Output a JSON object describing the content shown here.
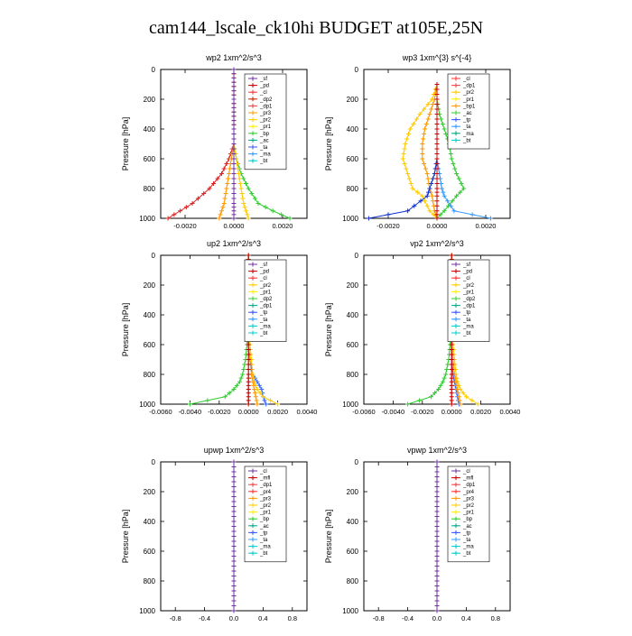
{
  "figure_title": "cam144_lscale_ck10hi  BUDGET at105E,25N",
  "chart_data": [
    {
      "type": "line",
      "title": "wp2  1xm^2/s^3",
      "ylabel": "Pressure [hPa]",
      "ylim": [
        0,
        1000
      ],
      "xlim": [
        -0.003,
        0.003
      ],
      "xticks": [
        -0.002,
        0,
        0.002
      ],
      "xtick_labels": [
        "-0.0020",
        "0.0000",
        "0.0020"
      ],
      "yticks": [
        0,
        200,
        400,
        600,
        800,
        1000
      ],
      "legend": [
        "_sf",
        "_pd",
        "_cl",
        "_dp2",
        "_dp1",
        "_pr3",
        "_pr2",
        "_pr1",
        "_bp",
        "_ac",
        "_ta",
        "_ma",
        "_bt"
      ],
      "legend_colors": [
        "#7030a0",
        "#cc0000",
        "#ff3333",
        "#cc2200",
        "#ee4444",
        "#ff9900",
        "#ffcc00",
        "#ffee00",
        "#33cc33",
        "#00aa88",
        "#3355ff",
        "#3399ff",
        "#00cccc"
      ],
      "series": [
        {
          "name": "_dp1",
          "color": "#dd2222",
          "x": [
            0,
            0,
            0,
            0,
            -0.0002,
            -0.0005,
            -0.001,
            -0.0017,
            -0.0022,
            -0.0027
          ],
          "y": [
            0,
            200,
            400,
            500,
            600,
            700,
            800,
            900,
            950,
            1000
          ]
        },
        {
          "name": "_pr1",
          "color": "#33cc33",
          "x": [
            0,
            0,
            0,
            0,
            0.0001,
            0.0003,
            0.0006,
            0.001,
            0.0016,
            0.0023
          ],
          "y": [
            0,
            200,
            400,
            500,
            600,
            700,
            800,
            900,
            950,
            1000
          ]
        },
        {
          "name": "_pr2",
          "color": "#ffcc00",
          "x": [
            0,
            0,
            0,
            0,
            0.0001,
            0.0002,
            0.0003,
            0.0004,
            0.0005,
            0.0006
          ],
          "y": [
            0,
            200,
            400,
            500,
            600,
            700,
            800,
            900,
            950,
            1000
          ]
        },
        {
          "name": "_pr3",
          "color": "#ff9900",
          "x": [
            0,
            0,
            0,
            0,
            -0.0001,
            -0.0002,
            -0.0003,
            -0.0004,
            -0.0005,
            -0.0006
          ],
          "y": [
            0,
            200,
            400,
            500,
            600,
            700,
            800,
            900,
            950,
            1000
          ]
        },
        {
          "name": "_sf",
          "color": "#7030a0",
          "x": [
            0,
            0,
            0,
            0,
            0,
            0,
            0,
            0,
            0,
            0
          ],
          "y": [
            0,
            200,
            400,
            500,
            600,
            700,
            800,
            900,
            950,
            1000
          ]
        }
      ]
    },
    {
      "type": "line",
      "title": "wp3  1xm^{3} s^{-4}",
      "ylabel": "Pressure [hPa]",
      "ylim": [
        0,
        1000
      ],
      "xlim": [
        -0.003,
        0.003
      ],
      "xticks": [
        -0.002,
        0,
        0.002
      ],
      "xtick_labels": [
        "-0.0020",
        "0.0000",
        "0.0020"
      ],
      "yticks": [
        0,
        200,
        400,
        600,
        800,
        1000
      ],
      "legend": [
        "_cl",
        "_dp1",
        "_pr2",
        "_pr1",
        "_bp1",
        "_ac",
        "_tp",
        "_ta",
        "_ma",
        "_bt"
      ],
      "legend_colors": [
        "#ff3333",
        "#ee4444",
        "#ffcc00",
        "#ffee00",
        "#ff9900",
        "#33cc33",
        "#3355ff",
        "#3399ff",
        "#00aa88",
        "#00cccc"
      ],
      "series": [
        {
          "name": "_ac",
          "color": "#33cc33",
          "x": [
            0,
            0,
            0.0001,
            0.0003,
            0.0005,
            0.0006,
            0.0008,
            0.0011,
            0.0008,
            0.0003,
            0
          ],
          "y": [
            100,
            200,
            300,
            400,
            500,
            600,
            700,
            800,
            850,
            950,
            1000
          ]
        },
        {
          "name": "_pr2",
          "color": "#ffcc00",
          "x": [
            0,
            -0.0002,
            -0.0007,
            -0.0011,
            -0.0013,
            -0.0014,
            -0.0012,
            -0.001,
            -0.0006,
            -0.0003,
            0
          ],
          "y": [
            100,
            200,
            300,
            400,
            500,
            600,
            700,
            800,
            850,
            950,
            1000
          ]
        },
        {
          "name": "_pr1",
          "color": "#ff9900",
          "x": [
            0,
            -0.0001,
            -0.0003,
            -0.0005,
            -0.0006,
            -0.0006,
            -0.0004,
            -0.0003,
            -0.0002,
            -0.0001,
            0
          ],
          "y": [
            100,
            200,
            300,
            400,
            500,
            600,
            700,
            800,
            850,
            950,
            1000
          ]
        },
        {
          "name": "_tp",
          "color": "#1133cc",
          "x": [
            0,
            0,
            0,
            0,
            0,
            0,
            -0.0001,
            -0.0003,
            -0.0004,
            -0.0012,
            -0.0028
          ],
          "y": [
            100,
            200,
            300,
            400,
            500,
            600,
            700,
            800,
            850,
            950,
            1000
          ]
        },
        {
          "name": "_ta",
          "color": "#3399ff",
          "x": [
            0,
            0,
            0,
            0,
            0,
            0,
            0.0001,
            0.0002,
            0.0003,
            0.0007,
            0.0022
          ],
          "y": [
            100,
            200,
            300,
            400,
            500,
            600,
            700,
            800,
            850,
            950,
            1000
          ]
        },
        {
          "name": "_cl",
          "color": "#cc0000",
          "x": [
            0,
            0,
            0,
            0,
            0,
            0,
            0,
            0,
            0,
            0,
            0
          ],
          "y": [
            100,
            200,
            300,
            400,
            500,
            600,
            700,
            800,
            850,
            950,
            1000
          ]
        }
      ]
    },
    {
      "type": "line",
      "title": "up2  1xm^2/s^3",
      "ylabel": "Pressure [hPa]",
      "ylim": [
        0,
        1000
      ],
      "xlim": [
        -0.006,
        0.004
      ],
      "xticks": [
        -0.006,
        -0.004,
        -0.002,
        0,
        0.002,
        0.004
      ],
      "xtick_labels": [
        "-0.0060",
        "-0.0040",
        "-0.0020",
        "0.0000",
        "0.0020",
        "0.0040"
      ],
      "yticks": [
        0,
        200,
        400,
        600,
        800,
        1000
      ],
      "legend": [
        "_sf",
        "_pd",
        "_cl",
        "_pr2",
        "_pr1",
        "_dp2",
        "_dp1",
        "_tp",
        "_ta",
        "_ma",
        "_bt"
      ],
      "legend_colors": [
        "#7030a0",
        "#cc0000",
        "#ff3333",
        "#ffcc00",
        "#ffee00",
        "#33cc33",
        "#00aa88",
        "#3355ff",
        "#3399ff",
        "#00cccc",
        "#00cccc"
      ],
      "series": [
        {
          "name": "_dp2",
          "color": "#33cc33",
          "x": [
            0,
            0,
            0,
            -0.0001,
            -0.0002,
            -0.0004,
            -0.0006,
            -0.001,
            -0.0016,
            -0.004
          ],
          "y": [
            0,
            200,
            400,
            600,
            700,
            800,
            850,
            900,
            950,
            1000
          ]
        },
        {
          "name": "_tp",
          "color": "#3366ff",
          "x": [
            0,
            0,
            0,
            0,
            0.0001,
            0.0003,
            0.0006,
            0.0009,
            0.001,
            0.0012
          ],
          "y": [
            0,
            200,
            400,
            600,
            700,
            800,
            850,
            900,
            950,
            1000
          ]
        },
        {
          "name": "_pr1",
          "color": "#ffcc00",
          "x": [
            0,
            0,
            0,
            0.0001,
            0.0002,
            0.0003,
            0.0004,
            0.0006,
            0.001,
            0.002
          ],
          "y": [
            0,
            200,
            400,
            600,
            700,
            800,
            850,
            900,
            950,
            1000
          ]
        },
        {
          "name": "_pr2",
          "color": "#ff9900",
          "x": [
            0,
            0,
            0,
            0,
            0.0001,
            0.0002,
            0.0003,
            0.0004,
            0.0005,
            0.0006
          ],
          "y": [
            0,
            200,
            400,
            600,
            700,
            800,
            850,
            900,
            950,
            1000
          ]
        },
        {
          "name": "_cl",
          "color": "#cc0000",
          "x": [
            0,
            0,
            0,
            0,
            0,
            0,
            0,
            0,
            0,
            0
          ],
          "y": [
            0,
            200,
            400,
            600,
            700,
            800,
            850,
            900,
            950,
            1000
          ]
        }
      ]
    },
    {
      "type": "line",
      "title": "vp2  1xm^2/s^3",
      "ylabel": "Pressure [hPa]",
      "ylim": [
        0,
        1000
      ],
      "xlim": [
        -0.006,
        0.004
      ],
      "xticks": [
        -0.006,
        -0.004,
        -0.002,
        0,
        0.002,
        0.004
      ],
      "xtick_labels": [
        "-0.0060",
        "-0.0040",
        "-0.0020",
        "0.0000",
        "0.0020",
        "0.0040"
      ],
      "yticks": [
        0,
        200,
        400,
        600,
        800,
        1000
      ],
      "legend": [
        "_sf",
        "_pd",
        "_cl",
        "_pr2",
        "_pr1",
        "_dp2",
        "_dp1",
        "_tp",
        "_ta",
        "_ma",
        "_bt"
      ],
      "legend_colors": [
        "#7030a0",
        "#cc0000",
        "#ff3333",
        "#ffcc00",
        "#ffee00",
        "#33cc33",
        "#00aa88",
        "#3355ff",
        "#3399ff",
        "#00cccc",
        "#00cccc"
      ],
      "series": [
        {
          "name": "_dp2",
          "color": "#33cc33",
          "x": [
            0,
            0,
            0,
            -0.0001,
            -0.0002,
            -0.0004,
            -0.0006,
            -0.0009,
            -0.0014,
            -0.003
          ],
          "y": [
            0,
            200,
            400,
            600,
            700,
            800,
            850,
            900,
            950,
            1000
          ]
        },
        {
          "name": "_tp",
          "color": "#3366ff",
          "x": [
            0,
            0,
            0,
            0,
            0,
            0.0001,
            0.0002,
            0.0003,
            0.0004,
            0.0005
          ],
          "y": [
            0,
            200,
            400,
            600,
            700,
            800,
            850,
            900,
            950,
            1000
          ]
        },
        {
          "name": "_pr1",
          "color": "#ffcc00",
          "x": [
            0,
            0,
            0,
            0.0001,
            0.0002,
            0.0003,
            0.0004,
            0.0006,
            0.001,
            0.0018
          ],
          "y": [
            0,
            200,
            400,
            600,
            700,
            800,
            850,
            900,
            950,
            1000
          ]
        },
        {
          "name": "_pr2",
          "color": "#ff9900",
          "x": [
            0,
            0,
            0,
            0,
            0.0001,
            0.0002,
            0.0003,
            0.0004,
            0.0005,
            0.0006
          ],
          "y": [
            0,
            200,
            400,
            600,
            700,
            800,
            850,
            900,
            950,
            1000
          ]
        },
        {
          "name": "_cl",
          "color": "#cc0000",
          "x": [
            0,
            0,
            0,
            0,
            0,
            0,
            0,
            0,
            0,
            0
          ],
          "y": [
            0,
            200,
            400,
            600,
            700,
            800,
            850,
            900,
            950,
            1000
          ]
        }
      ]
    },
    {
      "type": "line",
      "title": "upwp  1xm^2/s^3",
      "ylabel": "Pressure [hPa]",
      "ylim": [
        0,
        1000
      ],
      "xlim": [
        -1,
        1
      ],
      "xticks": [
        -0.8,
        -0.4,
        0,
        0.4,
        0.8
      ],
      "xtick_labels": [
        "-0.8",
        "-0.4",
        "0.0",
        "0.4",
        "0.8"
      ],
      "yticks": [
        0,
        200,
        400,
        600,
        800,
        1000
      ],
      "legend": [
        "_cl",
        "_mfl",
        "_dp1",
        "_pr4",
        "_pr3",
        "_pr2",
        "_pr1",
        "_bp",
        "_ac",
        "_tp",
        "_ta",
        "_ma",
        "_bt"
      ],
      "legend_colors": [
        "#7030a0",
        "#cc0000",
        "#ee4444",
        "#ff3333",
        "#ff9900",
        "#ffcc00",
        "#ffee00",
        "#33cc33",
        "#00aa88",
        "#3355ff",
        "#3399ff",
        "#00cccc",
        "#00cccc"
      ],
      "series": [
        {
          "name": "_cl",
          "color": "#7030a0",
          "x": [
            0,
            0,
            0,
            0,
            0,
            0,
            0,
            0,
            0,
            0,
            0
          ],
          "y": [
            0,
            100,
            200,
            300,
            400,
            500,
            600,
            700,
            800,
            900,
            1000
          ]
        }
      ]
    },
    {
      "type": "line",
      "title": "vpwp  1xm^2/s^3",
      "ylabel": "Pressure [hPa]",
      "ylim": [
        0,
        1000
      ],
      "xlim": [
        -1,
        1
      ],
      "xticks": [
        -0.8,
        -0.4,
        0,
        0.4,
        0.8
      ],
      "xtick_labels": [
        "-0.8",
        "-0.4",
        "0.0",
        "0.4",
        "0.8"
      ],
      "yticks": [
        0,
        200,
        400,
        600,
        800,
        1000
      ],
      "legend": [
        "_cl",
        "_mfl",
        "_dp1",
        "_pr4",
        "_pr3",
        "_pr2",
        "_pr1",
        "_bp",
        "_ac",
        "_tp",
        "_ta",
        "_ma",
        "_bt"
      ],
      "legend_colors": [
        "#7030a0",
        "#cc0000",
        "#ee4444",
        "#ff3333",
        "#ff9900",
        "#ffcc00",
        "#ffee00",
        "#33cc33",
        "#00aa88",
        "#3355ff",
        "#3399ff",
        "#00cccc",
        "#00cccc"
      ],
      "series": [
        {
          "name": "_cl",
          "color": "#7030a0",
          "x": [
            0,
            0,
            0,
            0,
            0,
            0,
            0,
            0,
            0,
            0,
            0
          ],
          "y": [
            0,
            100,
            200,
            300,
            400,
            500,
            600,
            700,
            800,
            900,
            1000
          ]
        }
      ]
    }
  ]
}
